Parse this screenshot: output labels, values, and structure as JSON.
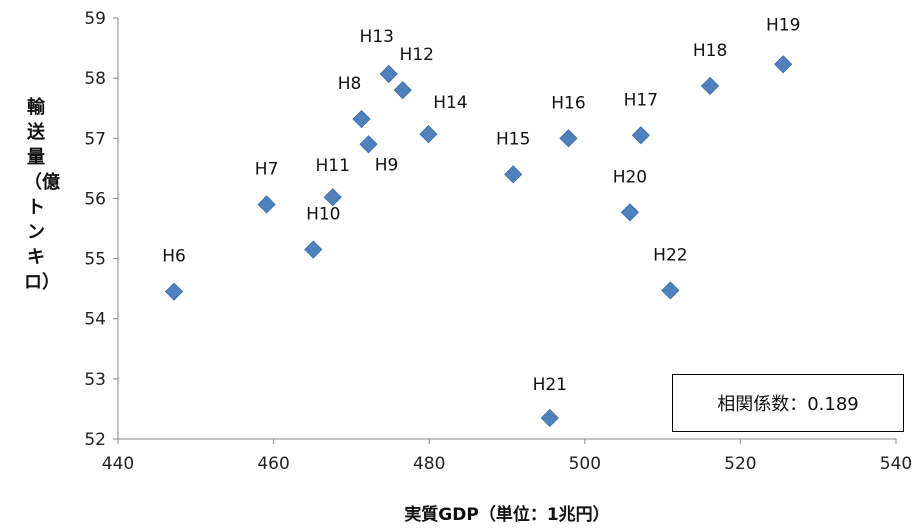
{
  "chart_data": {
    "type": "scatter",
    "xlabel": "実質GDP（単位：1兆円）",
    "ylabel": "輸送量（億トンキロ）",
    "xlim": [
      440,
      540
    ],
    "ylim": [
      52,
      59
    ],
    "x_ticks": [
      "440",
      "460",
      "480",
      "500",
      "520",
      "540"
    ],
    "y_ticks": [
      "52",
      "53",
      "54",
      "55",
      "56",
      "57",
      "58",
      "59"
    ],
    "point_color": "#4f81bd",
    "points": [
      {
        "label": "H6",
        "x": 447.2,
        "y": 54.45
      },
      {
        "label": "H7",
        "x": 459.1,
        "y": 55.9
      },
      {
        "label": "H8",
        "x": 471.3,
        "y": 57.32
      },
      {
        "label": "H9",
        "x": 472.2,
        "y": 56.9
      },
      {
        "label": "H10",
        "x": 465.1,
        "y": 55.15
      },
      {
        "label": "H11",
        "x": 467.6,
        "y": 56.02
      },
      {
        "label": "H12",
        "x": 476.6,
        "y": 57.8
      },
      {
        "label": "H13",
        "x": 474.8,
        "y": 58.07
      },
      {
        "label": "H14",
        "x": 479.9,
        "y": 57.07
      },
      {
        "label": "H15",
        "x": 490.8,
        "y": 56.4
      },
      {
        "label": "H16",
        "x": 497.9,
        "y": 57.0
      },
      {
        "label": "H17",
        "x": 507.2,
        "y": 57.05
      },
      {
        "label": "H18",
        "x": 516.1,
        "y": 57.87
      },
      {
        "label": "H19",
        "x": 525.5,
        "y": 58.23
      },
      {
        "label": "H20",
        "x": 505.8,
        "y": 55.77
      },
      {
        "label": "H21",
        "x": 495.5,
        "y": 52.35
      },
      {
        "label": "H22",
        "x": 511.0,
        "y": 54.47
      }
    ],
    "annotation": "相関係数：0.189"
  }
}
